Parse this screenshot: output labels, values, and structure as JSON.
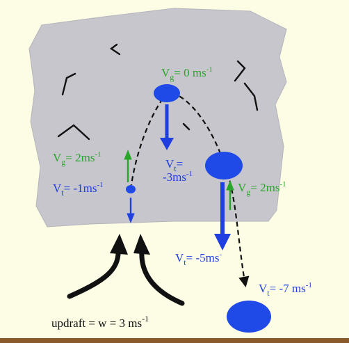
{
  "colors": {
    "background": "#fdfde6",
    "cloud": "#c6c6cc",
    "drop": "#1f4ae8",
    "velocity_label_green": "#29a629",
    "velocity_label_blue": "#1f3fe0",
    "ground": "#8b5a2b"
  },
  "labels": {
    "top_drop_vg": {
      "base": "V",
      "sub": "g",
      "rest": "= 0 ms",
      "sup": "-1"
    },
    "top_drop_vt_line1": {
      "base": "V",
      "sub": "t",
      "rest": "="
    },
    "top_drop_vt_line2": {
      "base": "-3ms",
      "sup": "-1"
    },
    "left_drop_vg": {
      "base": "V",
      "sub": "g",
      "rest": "= 2ms",
      "sup": "-1"
    },
    "left_drop_vt": {
      "base": "V",
      "sub": "t",
      "rest": "= -1ms",
      "sup": "-1"
    },
    "right_drop_vg": {
      "base": "V",
      "sub": "g",
      "rest": "= 2ms",
      "sup": "-1"
    },
    "right_drop_vt": {
      "base": "V",
      "sub": "t",
      "rest": "= -5ms",
      "sup": "-"
    },
    "bottom_drop_vt": {
      "base": "V",
      "sub": "t",
      "rest": "= -7 ms",
      "sup": "-1"
    },
    "updraft": {
      "base": "updraft = w = 3 ms",
      "sup": "-1"
    }
  }
}
